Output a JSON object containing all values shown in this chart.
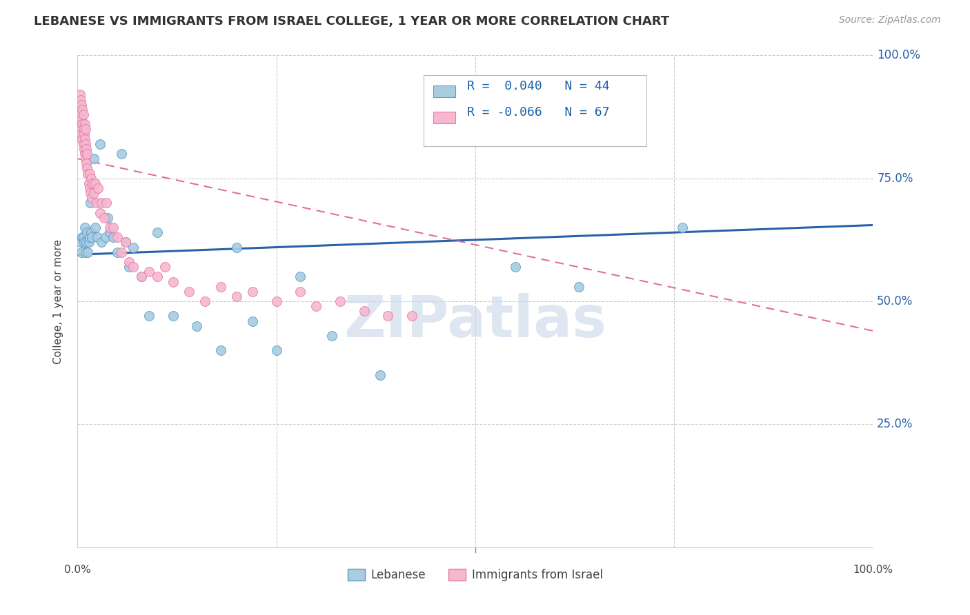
{
  "title": "LEBANESE VS IMMIGRANTS FROM ISRAEL COLLEGE, 1 YEAR OR MORE CORRELATION CHART",
  "source": "Source: ZipAtlas.com",
  "ylabel": "College, 1 year or more",
  "legend_label1": "Lebanese",
  "legend_label2": "Immigrants from Israel",
  "R1": "0.040",
  "N1": "44",
  "R2": "-0.066",
  "N2": "67",
  "blue_color": "#a8cce0",
  "blue_border": "#5b9dc9",
  "pink_color": "#f5b8cf",
  "pink_border": "#e87aaa",
  "trend_blue": "#2962a8",
  "trend_pink": "#e07098",
  "watermark_color": "#c8d8e8",
  "blue_scatter_x": [
    0.004,
    0.005,
    0.006,
    0.007,
    0.008,
    0.009,
    0.01,
    0.011,
    0.012,
    0.013,
    0.014,
    0.015,
    0.016,
    0.017,
    0.018,
    0.02,
    0.022,
    0.025,
    0.028,
    0.03,
    0.035,
    0.038,
    0.04,
    0.045,
    0.05,
    0.055,
    0.06,
    0.065,
    0.07,
    0.08,
    0.09,
    0.1,
    0.12,
    0.15,
    0.18,
    0.2,
    0.22,
    0.25,
    0.28,
    0.32,
    0.38,
    0.55,
    0.63,
    0.76
  ],
  "blue_scatter_y": [
    0.62,
    0.6,
    0.63,
    0.63,
    0.62,
    0.65,
    0.6,
    0.62,
    0.64,
    0.6,
    0.62,
    0.63,
    0.7,
    0.64,
    0.63,
    0.79,
    0.65,
    0.63,
    0.82,
    0.62,
    0.63,
    0.67,
    0.64,
    0.63,
    0.6,
    0.8,
    0.62,
    0.57,
    0.61,
    0.55,
    0.47,
    0.64,
    0.47,
    0.45,
    0.4,
    0.61,
    0.46,
    0.4,
    0.55,
    0.43,
    0.35,
    0.57,
    0.53,
    0.65
  ],
  "pink_scatter_x": [
    0.002,
    0.003,
    0.003,
    0.004,
    0.004,
    0.004,
    0.005,
    0.005,
    0.005,
    0.006,
    0.006,
    0.006,
    0.007,
    0.007,
    0.007,
    0.008,
    0.008,
    0.009,
    0.009,
    0.009,
    0.01,
    0.01,
    0.01,
    0.011,
    0.011,
    0.012,
    0.012,
    0.013,
    0.014,
    0.015,
    0.015,
    0.016,
    0.017,
    0.018,
    0.019,
    0.02,
    0.022,
    0.024,
    0.026,
    0.028,
    0.03,
    0.033,
    0.036,
    0.04,
    0.045,
    0.05,
    0.055,
    0.06,
    0.065,
    0.07,
    0.08,
    0.09,
    0.1,
    0.11,
    0.12,
    0.14,
    0.16,
    0.18,
    0.2,
    0.22,
    0.25,
    0.28,
    0.3,
    0.33,
    0.36,
    0.39,
    0.42
  ],
  "pink_scatter_y": [
    0.9,
    0.87,
    0.92,
    0.85,
    0.88,
    0.91,
    0.84,
    0.87,
    0.9,
    0.83,
    0.86,
    0.89,
    0.82,
    0.85,
    0.88,
    0.81,
    0.84,
    0.8,
    0.83,
    0.86,
    0.79,
    0.82,
    0.85,
    0.78,
    0.81,
    0.77,
    0.8,
    0.76,
    0.74,
    0.73,
    0.76,
    0.72,
    0.75,
    0.71,
    0.74,
    0.72,
    0.74,
    0.7,
    0.73,
    0.68,
    0.7,
    0.67,
    0.7,
    0.65,
    0.65,
    0.63,
    0.6,
    0.62,
    0.58,
    0.57,
    0.55,
    0.56,
    0.55,
    0.57,
    0.54,
    0.52,
    0.5,
    0.53,
    0.51,
    0.52,
    0.5,
    0.52,
    0.49,
    0.5,
    0.48,
    0.47,
    0.47
  ]
}
